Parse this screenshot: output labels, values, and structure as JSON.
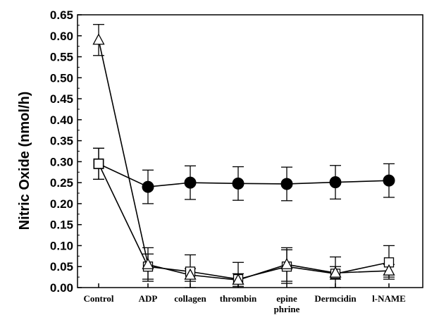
{
  "chart_data": {
    "type": "line",
    "title": "",
    "xlabel": "",
    "ylabel": "Nitric Oxide (nmol/h)",
    "categories": [
      "Control",
      "ADP",
      "collagen",
      "thrombin",
      "epine phrine",
      "Dermcidin",
      "l-NAME"
    ],
    "category_lines": [
      [
        "Control"
      ],
      [
        "ADP"
      ],
      [
        "collagen"
      ],
      [
        "thrombin"
      ],
      [
        "epine",
        "phrine"
      ],
      [
        "Dermcidin"
      ],
      [
        "l-NAME"
      ]
    ],
    "ylim": [
      0.0,
      0.65
    ],
    "yticks": [
      "0.00",
      "0.05",
      "0.10",
      "0.15",
      "0.20",
      "0.25",
      "0.30",
      "0.35",
      "0.40",
      "0.45",
      "0.50",
      "0.55",
      "0.60",
      "0.65"
    ],
    "grid": false,
    "legend": "none",
    "series": [
      {
        "marker": "filled-circle",
        "first_marker": "filled-square",
        "color": "#000000",
        "values": [
          0.295,
          0.24,
          0.25,
          0.248,
          0.247,
          0.251,
          0.255
        ],
        "errors": [
          0.037,
          0.04,
          0.04,
          0.04,
          0.04,
          0.04,
          0.04
        ]
      },
      {
        "marker": "open-square",
        "color": "#000000",
        "values": [
          0.295,
          0.05,
          0.038,
          0.02,
          0.05,
          0.033,
          0.06
        ],
        "errors": [
          0.037,
          0.03,
          0.04,
          0.04,
          0.04,
          0.04,
          0.04
        ]
      },
      {
        "marker": "open-triangle",
        "color": "#000000",
        "values": [
          0.59,
          0.055,
          0.03,
          0.018,
          0.055,
          0.035,
          0.04
        ],
        "errors": [
          0.037,
          0.04,
          0.015,
          0.015,
          0.04,
          0.015,
          0.015
        ]
      }
    ]
  }
}
